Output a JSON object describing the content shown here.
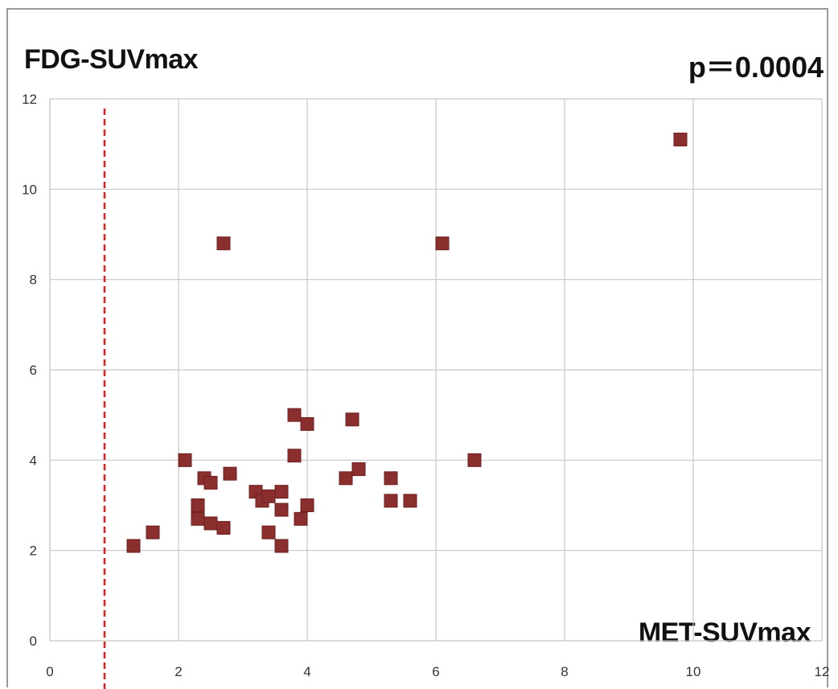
{
  "chart_data": {
    "type": "scatter",
    "title": "FDG-SUVmax",
    "annotation": "p＝0.0004",
    "xlabel": "MET-SUVmax",
    "ylabel": "",
    "xlim": [
      0,
      12
    ],
    "ylim": [
      0,
      12
    ],
    "xticks": [
      0,
      2,
      4,
      6,
      8,
      10,
      12
    ],
    "yticks": [
      0,
      2,
      4,
      6,
      8,
      10,
      12
    ],
    "grid": true,
    "marker_color": "#8b2e2e",
    "reference_line": {
      "x": 0.85,
      "style": "dashed",
      "color": "#e02020"
    },
    "series": [
      {
        "x": [
          1.3,
          1.6,
          2.1,
          2.3,
          2.3,
          2.4,
          2.5,
          2.5,
          2.7,
          2.7,
          2.8,
          3.2,
          3.3,
          3.4,
          3.4,
          3.6,
          3.6,
          3.6,
          3.8,
          3.8,
          3.9,
          4.0,
          4.0,
          4.6,
          4.7,
          4.8,
          5.3,
          5.3,
          5.6,
          6.1,
          6.6,
          9.8
        ],
        "y": [
          2.1,
          2.4,
          4.0,
          2.7,
          3.0,
          3.6,
          2.6,
          3.5,
          2.5,
          8.8,
          3.7,
          3.3,
          3.1,
          2.4,
          3.2,
          2.1,
          2.9,
          3.3,
          4.1,
          5.0,
          2.7,
          3.0,
          4.8,
          3.6,
          4.9,
          3.8,
          3.1,
          3.6,
          3.1,
          8.8,
          4.0,
          11.1
        ]
      }
    ]
  }
}
